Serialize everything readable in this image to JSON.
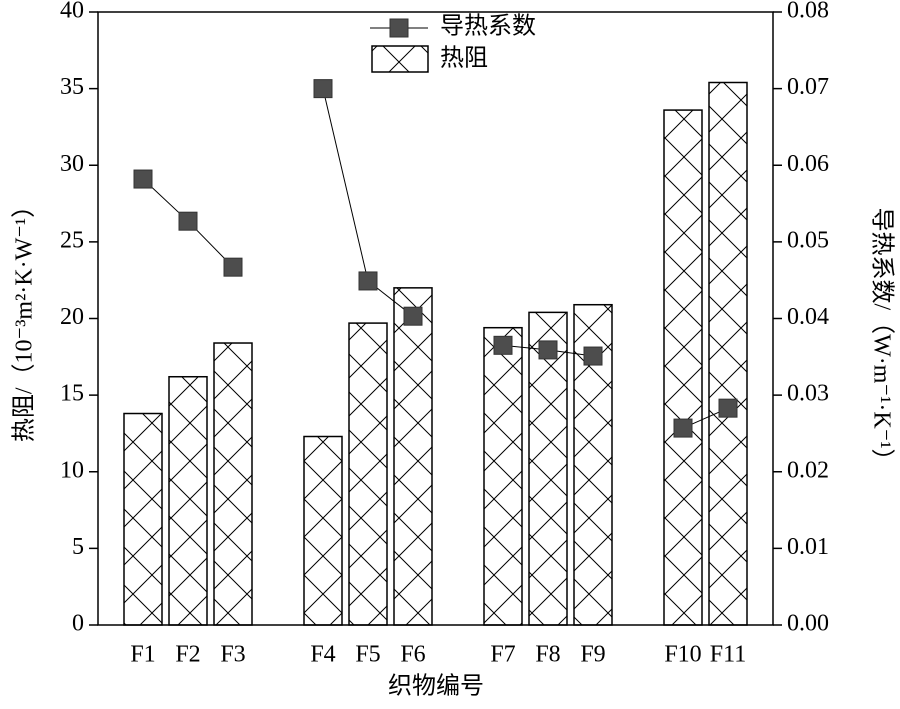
{
  "chart_data": {
    "type": "bar-line",
    "x_label": "织物编号",
    "y_label": "热阻/（10⁻³m²·K·W⁻¹）",
    "y2_label": "导热系数/（W·m⁻¹·K⁻¹）",
    "categories": [
      "F1",
      "F2",
      "F3",
      null,
      "F4",
      "F5",
      "F6",
      null,
      "F7",
      "F8",
      "F9",
      null,
      "F10",
      "F11"
    ],
    "series": [
      {
        "name": "热阻",
        "type": "bar",
        "color": "#000000",
        "pattern": "crosshatch",
        "values": [
          13.8,
          16.2,
          18.4,
          null,
          12.3,
          19.7,
          22.0,
          null,
          19.4,
          20.4,
          20.9,
          null,
          33.6,
          35.4
        ]
      },
      {
        "name": "导热系数",
        "type": "line",
        "axis": "y2",
        "color": "#4d4d4d",
        "values": [
          0.0582,
          0.0527,
          0.0467,
          null,
          0.07,
          0.0449,
          0.0403,
          null,
          0.0365,
          0.0359,
          0.0351,
          null,
          0.0257,
          0.0283
        ]
      }
    ],
    "ylim": [
      0,
      40
    ],
    "yticks": [
      0,
      5,
      10,
      15,
      20,
      25,
      30,
      35,
      40
    ],
    "y2lim": [
      0,
      0.08
    ],
    "y2ticks": [
      {
        "value": 0,
        "label": "0.00"
      },
      {
        "value": 0.01,
        "label": "0.01"
      },
      {
        "value": 0.02,
        "label": "0.02"
      },
      {
        "value": 0.03,
        "label": "0.03"
      },
      {
        "value": 0.04,
        "label": "0.04"
      },
      {
        "value": 0.05,
        "label": "0.05"
      },
      {
        "value": 0.06,
        "label": "0.06"
      },
      {
        "value": 0.07,
        "label": "0.07"
      },
      {
        "value": 0.08,
        "label": "0.08"
      }
    ],
    "legend": "top"
  }
}
